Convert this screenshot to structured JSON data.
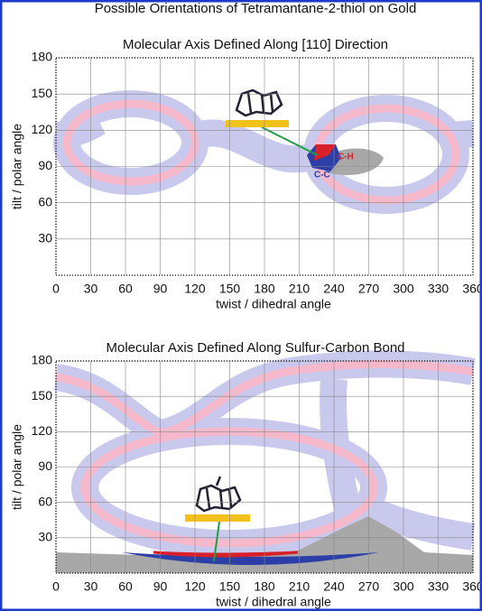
{
  "title": "Possible Orientations of Tetramantane-2-thiol on Gold",
  "chart_data": [
    {
      "type": "orientation-map",
      "title": "Molecular Axis Defined Along [110] Direction",
      "x_label": "twist / dihedral angle",
      "y_label": "tilt / polar angle",
      "xlim": [
        0,
        360
      ],
      "ylim": [
        0,
        180
      ],
      "xticks": [
        0,
        30,
        60,
        90,
        120,
        150,
        180,
        210,
        240,
        270,
        300,
        330,
        360
      ],
      "yticks": [
        30,
        60,
        90,
        120,
        150,
        180
      ],
      "grid": true,
      "annotations": [
        "C-H",
        "C-C"
      ]
    },
    {
      "type": "orientation-map",
      "title": "Molecular Axis Defined Along Sulfur-Carbon Bond",
      "x_label": "twist / dihedral angle",
      "y_label": "tilt / polar angle",
      "xlim": [
        0,
        360
      ],
      "ylim": [
        0,
        180
      ],
      "xticks": [
        0,
        30,
        60,
        90,
        120,
        150,
        180,
        210,
        240,
        270,
        300,
        330,
        360
      ],
      "yticks": [
        30,
        60,
        90,
        120,
        150,
        180
      ],
      "grid": true
    }
  ]
}
